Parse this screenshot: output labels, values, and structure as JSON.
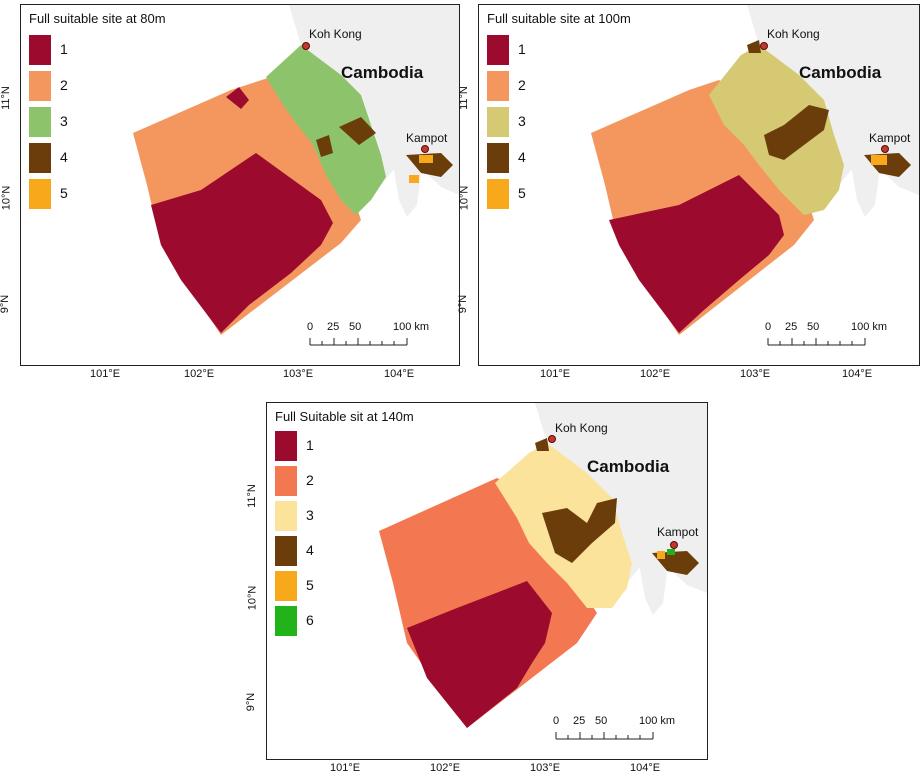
{
  "colors": {
    "class1": "#9c0a2e",
    "class2_top": "#f4975e",
    "class2_bottom": "#f37750",
    "class3_p1": "#8dc46b",
    "class3_p2": "#d6c974",
    "class3_p3": "#fbe39b",
    "class4": "#6b3d0a",
    "class5": "#f7a81b",
    "class6": "#22b31b",
    "land": "#efefef"
  },
  "panels": [
    {
      "title": "Full suitable site at 80m",
      "legend": [
        "1",
        "2",
        "3",
        "4",
        "5"
      ],
      "country": "Cambodia",
      "cities": [
        "Koh Kong",
        "Kampot"
      ],
      "scale": {
        "labels": [
          "0",
          "25",
          "50",
          "100 km"
        ]
      },
      "lon_ticks": [
        "101°E",
        "102°E",
        "103°E",
        "104°E"
      ],
      "lat_ticks": [
        "11°N",
        "10°N",
        "9°N"
      ]
    },
    {
      "title": "Full suitable site at 100m",
      "legend": [
        "1",
        "2",
        "3",
        "4",
        "5"
      ],
      "country": "Cambodia",
      "cities": [
        "Koh Kong",
        "Kampot"
      ],
      "scale": {
        "labels": [
          "0",
          "25",
          "50",
          "100 km"
        ]
      },
      "lon_ticks": [
        "101°E",
        "102°E",
        "103°E",
        "104°E"
      ],
      "lat_ticks": [
        "11°N",
        "10°N",
        "9°N"
      ]
    },
    {
      "title": "Full Suitable sit at 140m",
      "legend": [
        "1",
        "2",
        "3",
        "4",
        "5",
        "6"
      ],
      "country": "Cambodia",
      "cities": [
        "Koh Kong",
        "Kampot"
      ],
      "scale": {
        "labels": [
          "0",
          "25",
          "50",
          "100 km"
        ]
      },
      "lon_ticks": [
        "101°E",
        "102°E",
        "103°E",
        "104°E"
      ],
      "lat_ticks": [
        "11°N",
        "10°N",
        "9°N"
      ]
    }
  ]
}
